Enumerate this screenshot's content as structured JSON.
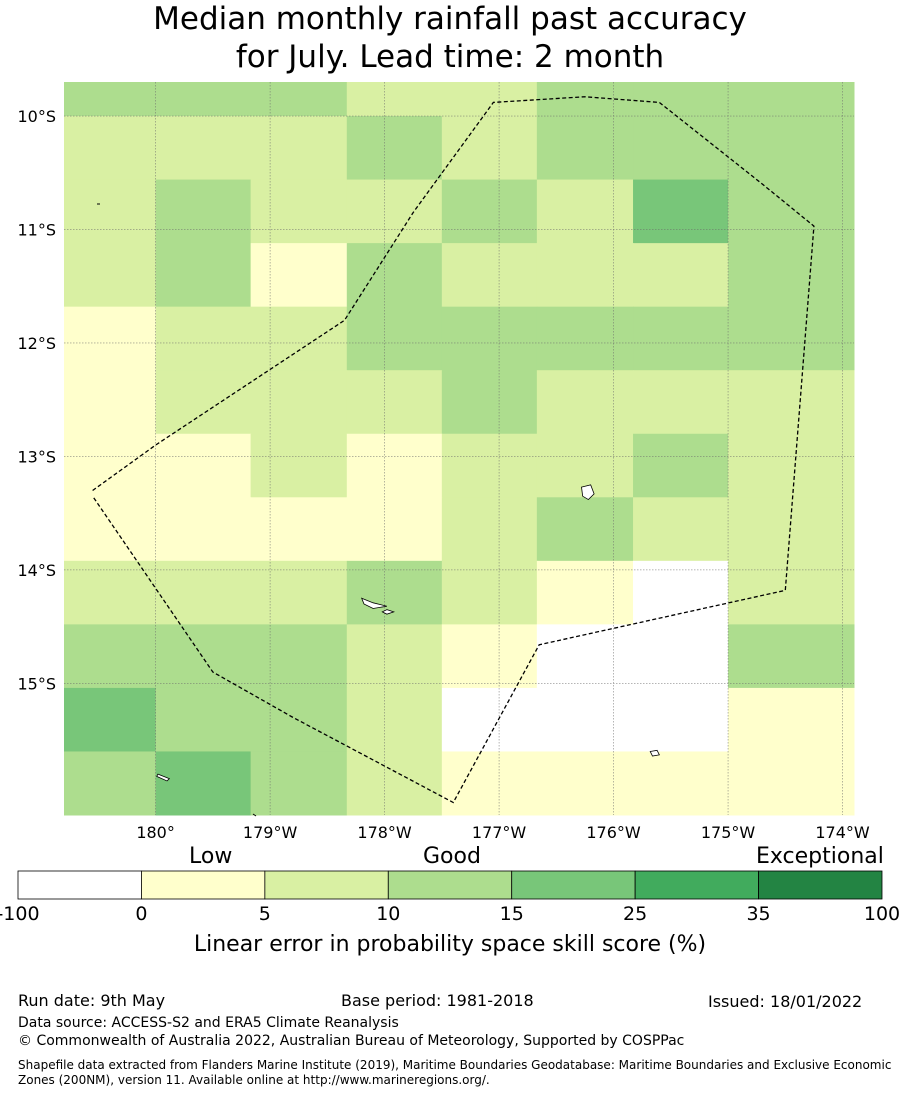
{
  "title_line1": "Median monthly rainfall past accuracy",
  "title_line2": "for July. Lead time: 2 month",
  "lat_labels": [
    "10°S",
    "11°S",
    "12°S",
    "13°S",
    "14°S",
    "15°S"
  ],
  "lon_labels": [
    "180°",
    "179°W",
    "178°W",
    "177°W",
    "176°W",
    "175°W",
    "174°W"
  ],
  "colorbar": {
    "categories": [
      "Low",
      "Good",
      "Exceptional"
    ],
    "ticks": [
      "-100",
      "0",
      "5",
      "10",
      "15",
      "25",
      "35",
      "100"
    ],
    "colors": [
      "#ffffff",
      "#ffffcc",
      "#d9f0a3",
      "#addd8e",
      "#78c679",
      "#41ab5d",
      "#238443"
    ],
    "title": "Linear error in probability space skill score (%)"
  },
  "skill_grid": {
    "lon_edges": [
      -180.8,
      -180.0,
      -179.17,
      -178.33,
      -177.5,
      -176.67,
      -175.83,
      -175.0,
      -174.2
    ],
    "lat_edges": [
      -9.7,
      -10.0,
      -10.56,
      -11.12,
      -11.68,
      -12.24,
      -12.8,
      -13.36,
      -13.92,
      -14.48,
      -15.04,
      -15.6,
      -16.16
    ],
    "classes": [
      [
        3,
        3,
        3,
        2,
        2,
        3,
        3,
        3,
        3
      ],
      [
        2,
        2,
        2,
        3,
        2,
        3,
        3,
        3,
        3
      ],
      [
        2,
        3,
        2,
        2,
        3,
        2,
        4,
        3,
        3
      ],
      [
        2,
        3,
        1,
        3,
        2,
        2,
        2,
        3,
        3
      ],
      [
        1,
        2,
        2,
        3,
        3,
        3,
        3,
        3,
        3
      ],
      [
        1,
        2,
        2,
        2,
        3,
        2,
        2,
        2,
        2
      ],
      [
        1,
        1,
        2,
        1,
        2,
        2,
        3,
        2,
        3
      ],
      [
        1,
        1,
        1,
        1,
        2,
        3,
        2,
        2,
        2
      ],
      [
        2,
        2,
        2,
        3,
        2,
        1,
        0,
        2,
        2
      ],
      [
        3,
        3,
        3,
        2,
        1,
        0,
        0,
        3,
        3
      ],
      [
        4,
        3,
        3,
        2,
        0,
        0,
        0,
        1,
        2
      ],
      [
        3,
        4,
        3,
        2,
        1,
        1,
        1,
        1,
        1
      ]
    ]
  },
  "eez_boundary": [
    [
      -180.55,
      -13.3
    ],
    [
      -180.0,
      -12.9
    ],
    [
      -178.35,
      -11.8
    ],
    [
      -177.75,
      -10.85
    ],
    [
      -177.05,
      -9.88
    ],
    [
      -176.25,
      -9.83
    ],
    [
      -175.6,
      -9.88
    ],
    [
      -174.7,
      -10.6
    ],
    [
      -174.25,
      -10.97
    ],
    [
      -174.5,
      -14.18
    ],
    [
      -176.65,
      -14.66
    ],
    [
      -177.4,
      -16.05
    ],
    [
      -178.8,
      -15.3
    ],
    [
      -179.5,
      -14.9
    ],
    [
      -180.55,
      -13.35
    ]
  ],
  "islands": [
    {
      "name": "",
      "points": [
        [
          -176.28,
          -13.27
        ],
        [
          -176.2,
          -13.25
        ],
        [
          -176.17,
          -13.33
        ],
        [
          -176.22,
          -13.38
        ],
        [
          -176.27,
          -13.35
        ]
      ]
    },
    {
      "name": "",
      "points": [
        [
          -178.2,
          -14.25
        ],
        [
          -178.1,
          -14.29
        ],
        [
          -177.98,
          -14.32
        ],
        [
          -178.1,
          -14.34
        ],
        [
          -178.18,
          -14.3
        ]
      ]
    },
    {
      "name": "",
      "points": [
        [
          -177.98,
          -14.35
        ],
        [
          -177.92,
          -14.37
        ],
        [
          -177.98,
          -14.39
        ],
        [
          -178.02,
          -14.37
        ]
      ]
    },
    {
      "name": "",
      "points": [
        [
          -175.68,
          -15.6
        ],
        [
          -175.62,
          -15.59
        ],
        [
          -175.6,
          -15.63
        ],
        [
          -175.66,
          -15.64
        ]
      ]
    },
    {
      "name": "",
      "points": [
        [
          -179.98,
          -15.8
        ],
        [
          -179.88,
          -15.84
        ],
        [
          -179.9,
          -15.86
        ],
        [
          -179.99,
          -15.82
        ]
      ]
    }
  ],
  "footer": {
    "run_date": "Run date: 9th May",
    "base_period": "Base period: 1981-2018",
    "issued": "Issued: 18/01/2022",
    "data_source": "Data source: ACCESS-S2 and ERA5 Climate Reanalysis",
    "copyright": "© Commonwealth of Australia 2022, Australian Bureau of Meteorology, Supported by COSPPac",
    "shapefile_line1": "Shapefile data extracted from Flanders Marine Institute (2019), Maritime Boundaries Geodatabase: Maritime Boundaries and Exclusive Economic",
    "shapefile_line2": "Zones (200NM), version 11. Available online at http://www.marineregions.org/."
  }
}
